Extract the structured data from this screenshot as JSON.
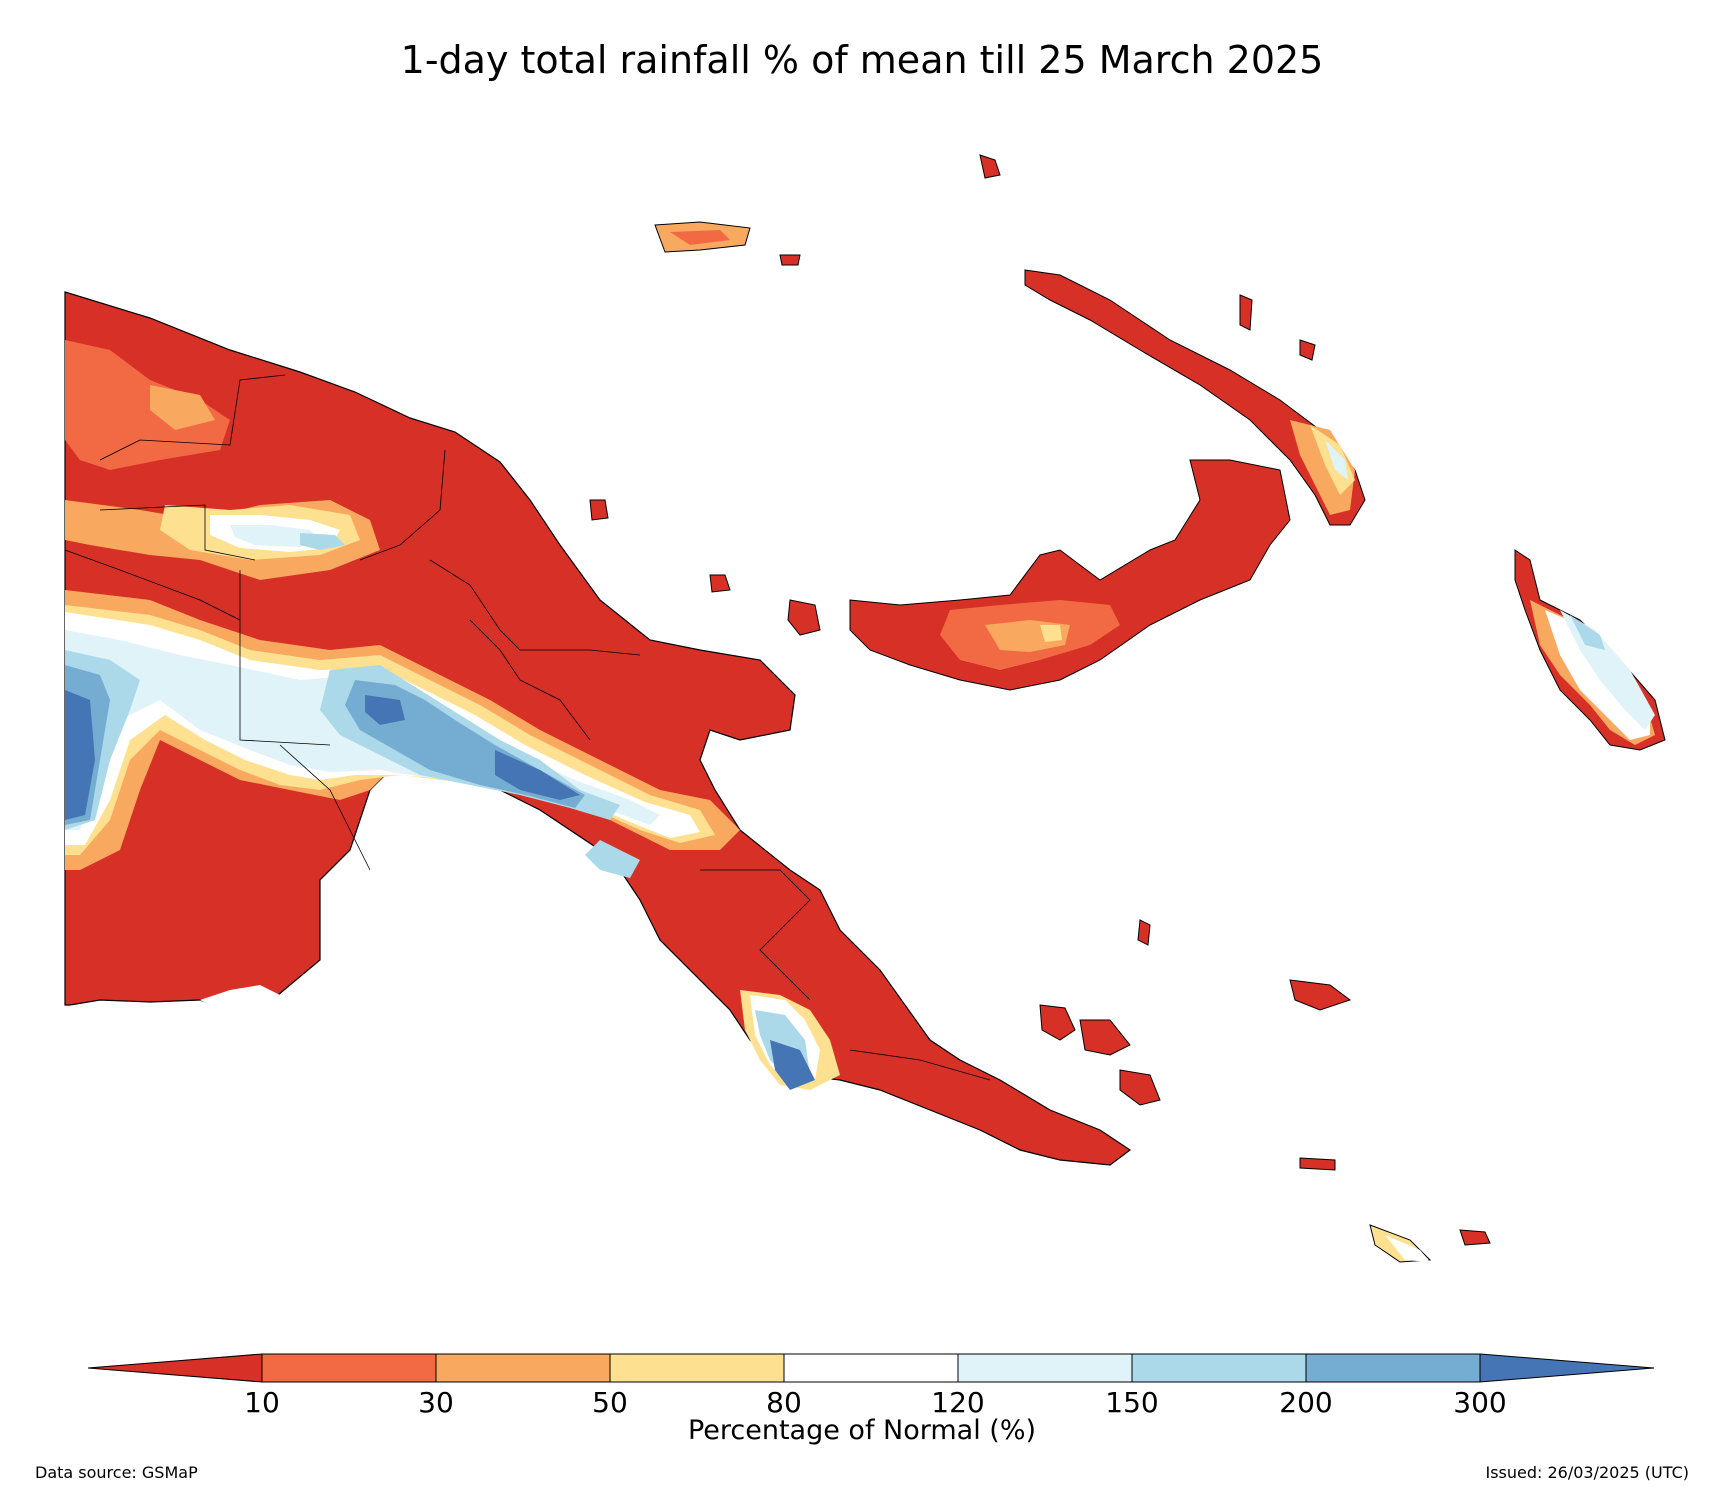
{
  "title": "1-day total rainfall % of mean till 25 March 2025",
  "colorbar": {
    "label": "Percentage of Normal (%)",
    "ticks": [
      "10",
      "30",
      "50",
      "80",
      "120",
      "150",
      "200",
      "300"
    ],
    "bins": [
      {
        "range": "<10",
        "color": "#d73027"
      },
      {
        "range": "10-30",
        "color": "#f16a44"
      },
      {
        "range": "30-50",
        "color": "#f9a85f"
      },
      {
        "range": "50-80",
        "color": "#fde090"
      },
      {
        "range": "80-120",
        "color": "#ffffff"
      },
      {
        "range": "120-150",
        "color": "#e0f3f8"
      },
      {
        "range": "150-200",
        "color": "#abd9e9"
      },
      {
        "range": "200-300",
        "color": "#74add1"
      },
      {
        "range": ">300",
        "color": "#4575b4"
      }
    ],
    "extend": "both"
  },
  "footer": {
    "source": "Data source: GSMaP",
    "issued": "Issued: 26/03/2025 (UTC)"
  }
}
